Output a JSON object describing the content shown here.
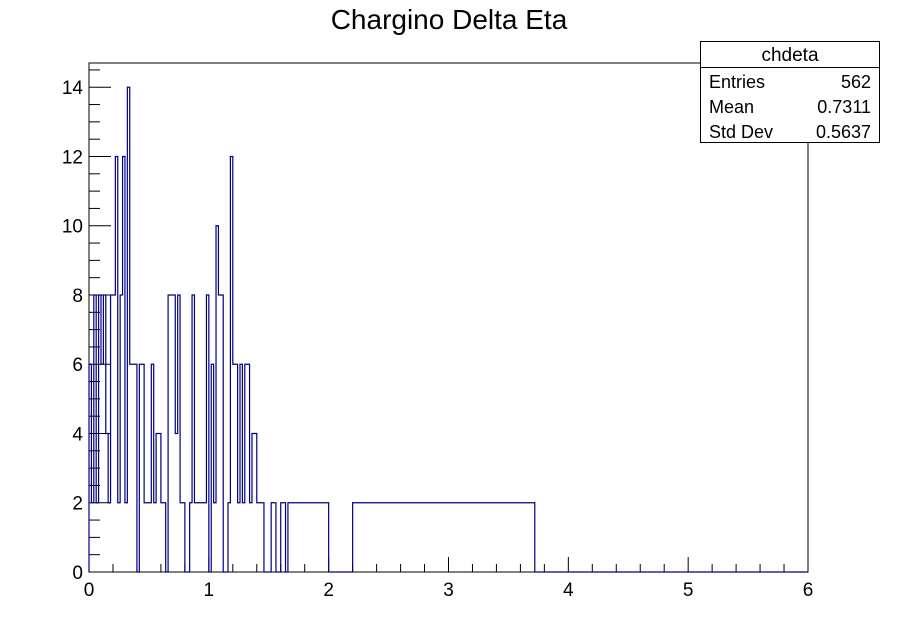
{
  "chart_data": {
    "type": "bar",
    "style": "step-histogram",
    "title": "Chargino Delta Eta",
    "xlabel": "",
    "ylabel": "",
    "xlim": [
      0,
      6
    ],
    "ylim": [
      0,
      14.7
    ],
    "bins": 300,
    "bin_width": 0.02,
    "x_ticks": [
      0,
      1,
      2,
      3,
      4,
      5,
      6
    ],
    "y_ticks": [
      0,
      2,
      4,
      6,
      8,
      10,
      12,
      14
    ],
    "line_color": "#000080",
    "bars": [
      [
        0.0,
        6
      ],
      [
        0.02,
        2
      ],
      [
        0.04,
        8
      ],
      [
        0.06,
        2
      ],
      [
        0.08,
        8
      ],
      [
        0.1,
        6
      ],
      [
        0.12,
        8
      ],
      [
        0.14,
        4
      ],
      [
        0.16,
        2
      ],
      [
        0.18,
        8
      ],
      [
        0.2,
        8
      ],
      [
        0.22,
        12
      ],
      [
        0.24,
        2
      ],
      [
        0.26,
        8
      ],
      [
        0.28,
        12
      ],
      [
        0.3,
        2
      ],
      [
        0.32,
        14
      ],
      [
        0.34,
        6
      ],
      [
        0.4,
        0
      ],
      [
        0.42,
        6
      ],
      [
        0.46,
        2
      ],
      [
        0.52,
        6
      ],
      [
        0.54,
        2
      ],
      [
        0.56,
        4
      ],
      [
        0.6,
        2
      ],
      [
        0.64,
        0
      ],
      [
        0.66,
        8
      ],
      [
        0.72,
        4
      ],
      [
        0.74,
        8
      ],
      [
        0.76,
        2
      ],
      [
        0.8,
        0
      ],
      [
        0.84,
        2
      ],
      [
        0.86,
        8
      ],
      [
        0.88,
        2
      ],
      [
        0.94,
        2
      ],
      [
        0.98,
        8
      ],
      [
        1.0,
        0
      ],
      [
        1.02,
        6
      ],
      [
        1.04,
        2
      ],
      [
        1.06,
        10
      ],
      [
        1.08,
        8
      ],
      [
        1.12,
        0
      ],
      [
        1.16,
        2
      ],
      [
        1.18,
        12
      ],
      [
        1.2,
        6
      ],
      [
        1.24,
        2
      ],
      [
        1.26,
        6
      ],
      [
        1.28,
        2
      ],
      [
        1.3,
        6
      ],
      [
        1.34,
        2
      ],
      [
        1.36,
        4
      ],
      [
        1.4,
        2
      ],
      [
        1.46,
        0
      ],
      [
        1.52,
        2
      ],
      [
        1.56,
        0
      ],
      [
        1.6,
        2
      ],
      [
        1.64,
        0
      ],
      [
        1.66,
        2
      ],
      [
        1.68,
        2
      ],
      [
        1.7,
        2
      ],
      [
        1.96,
        2
      ],
      [
        2.0,
        0
      ],
      [
        2.2,
        2
      ],
      [
        2.36,
        2
      ],
      [
        3.7,
        2
      ]
    ],
    "stats": {
      "name": "chdeta",
      "entries_label": "Entries",
      "entries": "562",
      "mean_label": "Mean",
      "mean": "0.7311",
      "std_label": "Std Dev",
      "std": "0.5637"
    }
  }
}
